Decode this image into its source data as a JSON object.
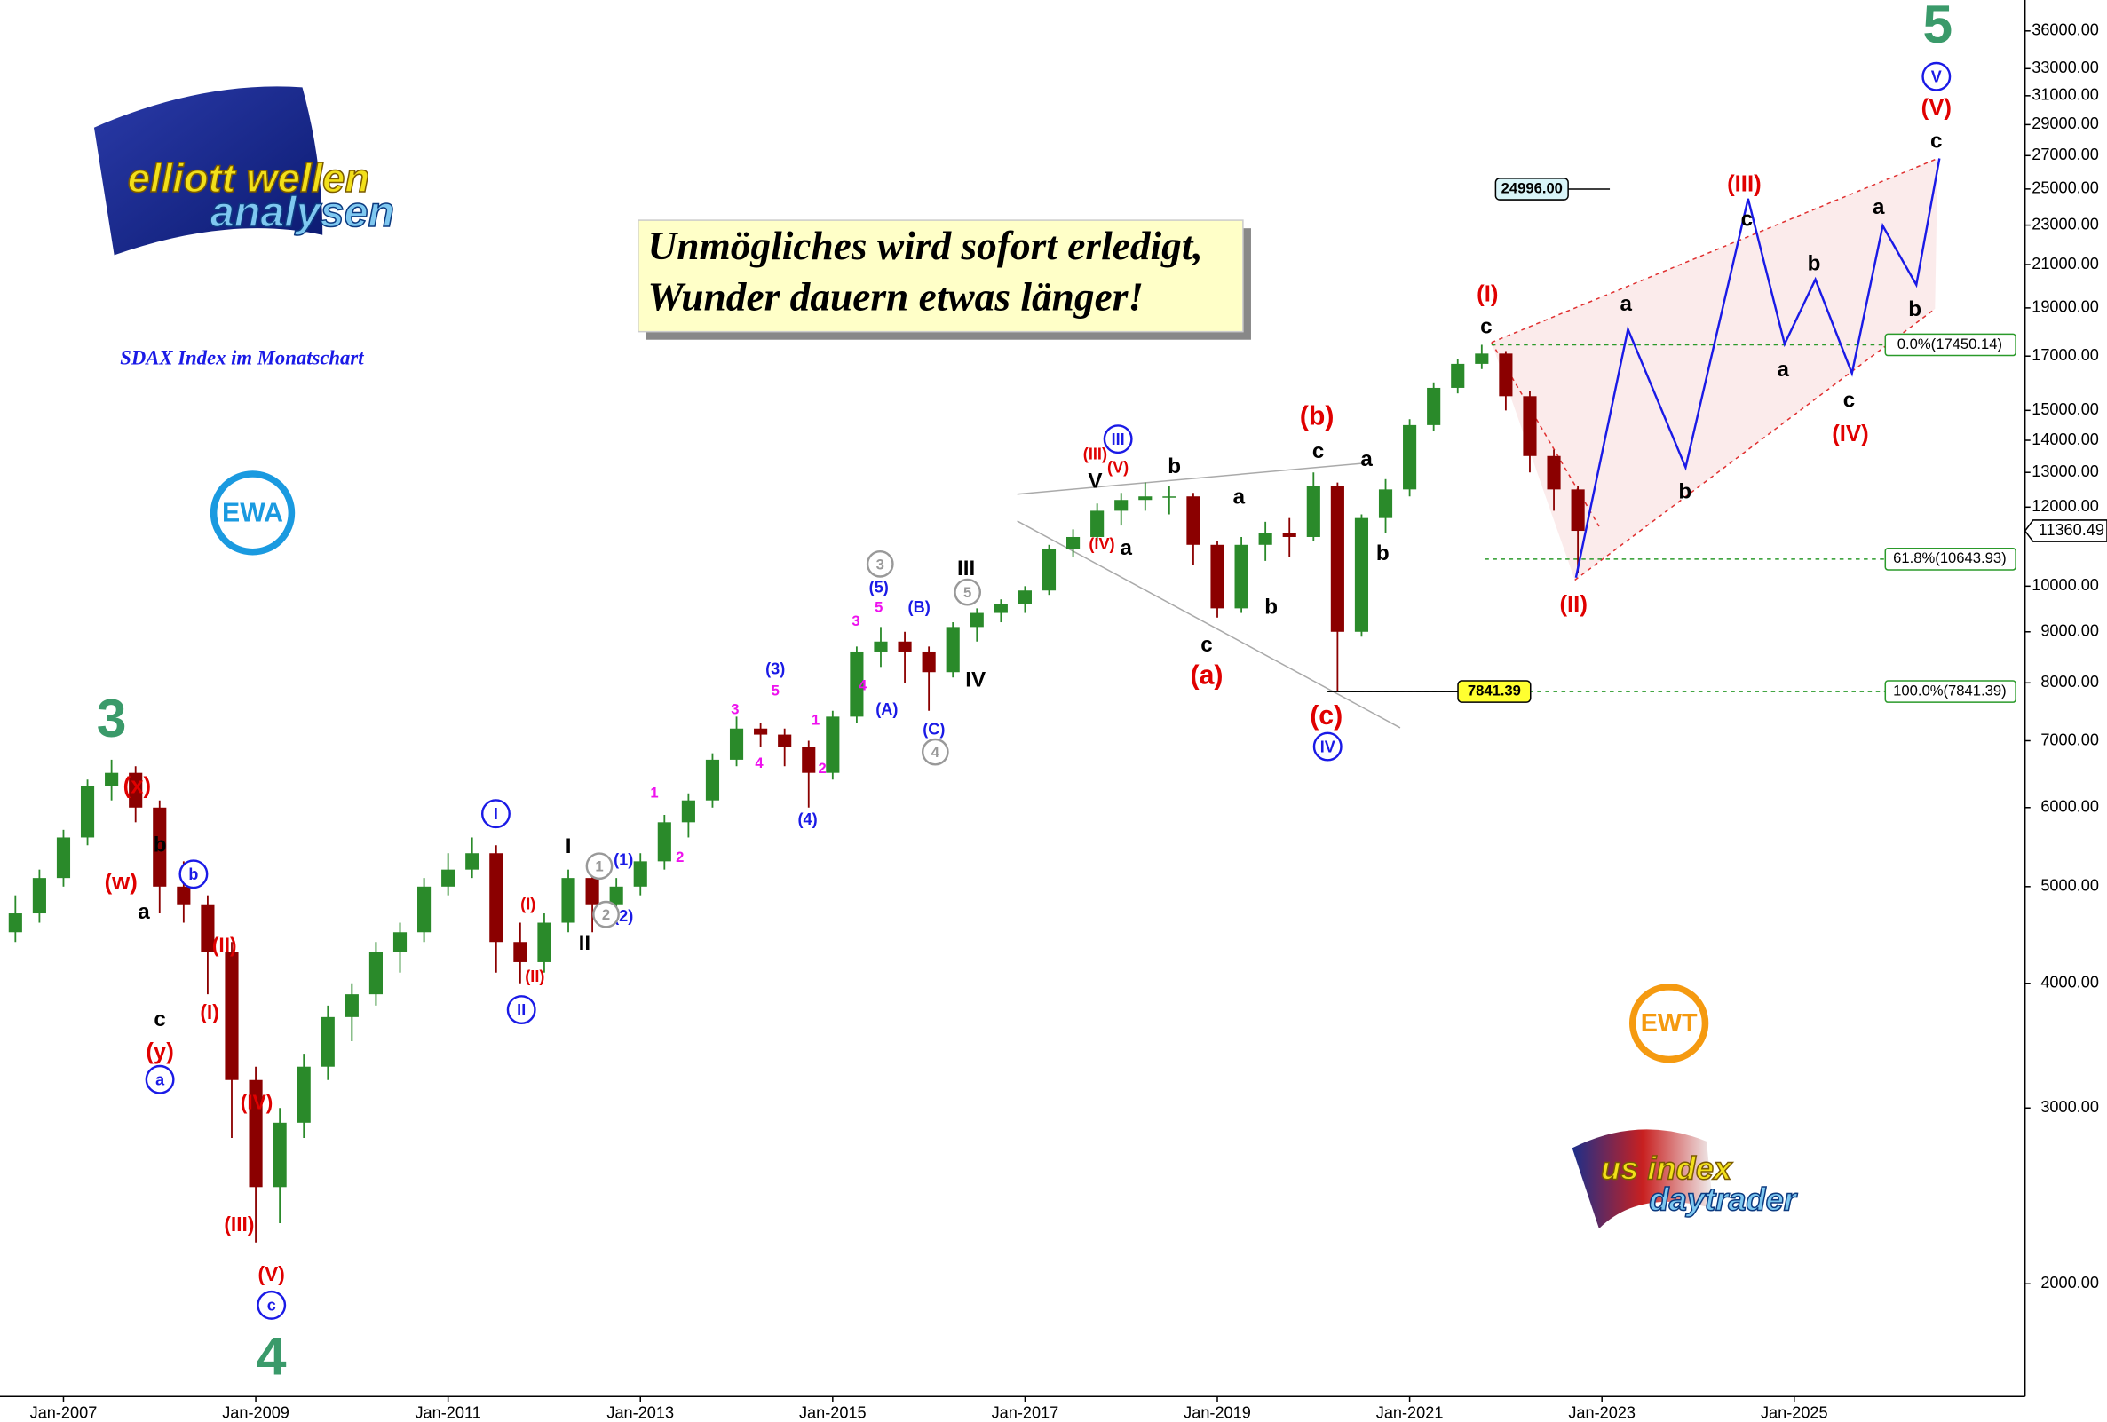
{
  "chart_data": {
    "type": "candlestick",
    "subtitle": "SDAX Index im Monatschart",
    "quote": [
      "Unmögliches wird sofort erledigt,",
      "Wunder dauern etwas länger!"
    ],
    "log_scale": true,
    "up_color": "#2a8a2a",
    "down_color": "#8b0000",
    "xlim": [
      2006.34,
      2027.4
    ],
    "xticks": [
      {
        "value": 2007,
        "label": "Jan-2007"
      },
      {
        "value": 2009,
        "label": "Jan-2009"
      },
      {
        "value": 2011,
        "label": "Jan-2011"
      },
      {
        "value": 2013,
        "label": "Jan-2013"
      },
      {
        "value": 2015,
        "label": "Jan-2015"
      },
      {
        "value": 2017,
        "label": "Jan-2017"
      },
      {
        "value": 2019,
        "label": "Jan-2019"
      },
      {
        "value": 2021,
        "label": "Jan-2021"
      },
      {
        "value": 2023,
        "label": "Jan-2023"
      },
      {
        "value": 2025,
        "label": "Jan-2025"
      }
    ],
    "ylim": [
      1542,
      38660
    ],
    "yticks": [
      {
        "value": 2000,
        "label": "2000.00"
      },
      {
        "value": 3000,
        "label": "3000.00"
      },
      {
        "value": 4000,
        "label": "4000.00"
      },
      {
        "value": 5000,
        "label": "5000.00"
      },
      {
        "value": 6000,
        "label": "6000.00"
      },
      {
        "value": 7000,
        "label": "7000.00"
      },
      {
        "value": 8000,
        "label": "8000.00"
      },
      {
        "value": 9000,
        "label": "9000.00"
      },
      {
        "value": 10000,
        "label": "10000.00"
      },
      {
        "value": 12000,
        "label": "12000.00"
      },
      {
        "value": 13000,
        "label": "13000.00"
      },
      {
        "value": 14000,
        "label": "14000.00"
      },
      {
        "value": 15000,
        "label": "15000.00"
      },
      {
        "value": 17000,
        "label": "17000.00"
      },
      {
        "value": 19000,
        "label": "19000.00"
      },
      {
        "value": 21000,
        "label": "21000.00"
      },
      {
        "value": 23000,
        "label": "23000.00"
      },
      {
        "value": 25000,
        "label": "25000.00"
      },
      {
        "value": 27000,
        "label": "27000.00"
      },
      {
        "value": 29000,
        "label": "29000.00"
      },
      {
        "value": 31000,
        "label": "31000.00"
      },
      {
        "value": 33000,
        "label": "33000.00"
      },
      {
        "value": 36000,
        "label": "36000.00"
      }
    ],
    "x": [
      2006.5,
      2006.75,
      2007,
      2007.25,
      2007.5,
      2007.75,
      2008,
      2008.25,
      2008.5,
      2008.75,
      2009,
      2009.25,
      2009.5,
      2009.75,
      2010,
      2010.25,
      2010.5,
      2010.75,
      2011,
      2011.25,
      2011.5,
      2011.75,
      2012,
      2012.25,
      2012.5,
      2012.75,
      2013,
      2013.25,
      2013.5,
      2013.75,
      2014,
      2014.25,
      2014.5,
      2014.75,
      2015,
      2015.25,
      2015.5,
      2015.75,
      2016,
      2016.25,
      2016.5,
      2016.75,
      2017,
      2017.25,
      2017.5,
      2017.75,
      2018,
      2018.25,
      2018.5,
      2018.75,
      2019,
      2019.25,
      2019.5,
      2019.75,
      2020,
      2020.25,
      2020.5,
      2020.75,
      2021,
      2021.25,
      2021.5,
      2021.75,
      2022,
      2022.25,
      2022.5,
      2022.75
    ],
    "open": [
      4500,
      4700,
      5100,
      5600,
      6300,
      6500,
      6000,
      5000,
      4800,
      4300,
      3200,
      2500,
      2900,
      3300,
      3700,
      3900,
      4300,
      4500,
      5000,
      5200,
      5400,
      4400,
      4200,
      4600,
      5100,
      4800,
      5000,
      5300,
      5800,
      6100,
      6700,
      7200,
      7100,
      6900,
      6500,
      7400,
      8600,
      8800,
      8600,
      8200,
      9100,
      9400,
      9600,
      9900,
      10900,
      11200,
      11900,
      12200,
      12300,
      12300,
      11000,
      9500,
      11000,
      11300,
      11200,
      12600,
      9000,
      11700,
      12500,
      14500,
      15800,
      16700,
      17100,
      15500,
      13500,
      12500
    ],
    "high": [
      4900,
      5200,
      5700,
      6400,
      6700,
      6600,
      6100,
      5300,
      4900,
      4400,
      3300,
      3000,
      3400,
      3800,
      4000,
      4400,
      4600,
      5100,
      5400,
      5600,
      5500,
      4600,
      4700,
      5200,
      5200,
      5100,
      5400,
      5900,
      6200,
      6800,
      7400,
      7300,
      7200,
      7000,
      7500,
      8700,
      9100,
      9000,
      8700,
      9200,
      9500,
      9700,
      10000,
      11000,
      11400,
      12100,
      12400,
      12700,
      12600,
      12400,
      11100,
      11200,
      11600,
      11700,
      13000,
      12700,
      11800,
      12800,
      14700,
      16000,
      16900,
      17450.14,
      17200,
      15700,
      13700,
      12600
    ],
    "low": [
      4400,
      4600,
      5000,
      5500,
      6100,
      5800,
      4700,
      4600,
      3900,
      2800,
      2200,
      2300,
      2800,
      3200,
      3500,
      3800,
      4100,
      4400,
      4900,
      5100,
      4100,
      4000,
      4100,
      4500,
      4500,
      4700,
      4900,
      5200,
      5600,
      6000,
      6600,
      6900,
      6600,
      6000,
      6400,
      7300,
      8300,
      8000,
      7500,
      8100,
      8800,
      9200,
      9400,
      9800,
      10700,
      11100,
      11500,
      11900,
      11800,
      10500,
      9300,
      9400,
      10600,
      10700,
      11100,
      7841.39,
      8900,
      11300,
      12300,
      14300,
      15600,
      16500,
      15000,
      13000,
      11900,
      10300
    ],
    "close": [
      4700,
      5100,
      5600,
      6300,
      6500,
      6000,
      5000,
      4800,
      4300,
      3200,
      2500,
      2900,
      3300,
      3700,
      3900,
      4300,
      4500,
      5000,
      5200,
      5400,
      4400,
      4200,
      4600,
      5100,
      4800,
      5000,
      5300,
      5800,
      6100,
      6700,
      7200,
      7100,
      6900,
      6500,
      7400,
      8600,
      8800,
      8600,
      8200,
      9100,
      9400,
      9600,
      9900,
      10900,
      11200,
      11900,
      12200,
      12300,
      12300,
      11000,
      9500,
      11000,
      11300,
      11200,
      12600,
      9000,
      11700,
      12500,
      14500,
      15800,
      16700,
      17100,
      15500,
      13500,
      12500,
      11360.49
    ],
    "projection": {
      "color": "#1a1ae6",
      "x": [
        2022.73,
        2023.27,
        2023.87,
        2024.52,
        2024.9,
        2025.22,
        2025.6,
        2025.92,
        2026.27,
        2026.51
      ],
      "values": [
        10198,
        18090,
        13150,
        24440,
        17480,
        20290,
        16340,
        22970,
        20040,
        26820
      ]
    },
    "fib_levels": [
      {
        "value": 17450.14,
        "label": "0.0%(17450.14)"
      },
      {
        "value": 10643.93,
        "label": "61.8%(10643.93)"
      },
      {
        "value": 7841.39,
        "label": "100.0%(7841.39)"
      }
    ],
    "price_tags": [
      {
        "value": 24996,
        "label": "24996.00"
      },
      {
        "value": 7841.39,
        "label": "7841.39"
      }
    ],
    "last_price": {
      "value": 11360.49,
      "label": "11360.49"
    },
    "wave_label_groups": [
      {
        "color": "#3a9a6a",
        "style": "plain",
        "labels": [
          "3",
          "4",
          "5"
        ]
      },
      {
        "color": "#e00000",
        "style": "plain",
        "labels": [
          "(x)",
          "(w)",
          "(y)",
          "(II)",
          "(I)",
          "(IV)",
          "(III)",
          "(V)",
          "(I)",
          "(II)",
          "(III)",
          "(V)",
          "(IV)",
          "(b)",
          "(a)",
          "(c)",
          "(I)",
          "(II)",
          "(III)",
          "(IV)",
          "(V)"
        ]
      },
      {
        "color": "#000000",
        "style": "plain",
        "labels": [
          "b",
          "a",
          "c",
          "I",
          "II",
          "III",
          "IV",
          "V",
          "b",
          "a",
          "a",
          "b",
          "c",
          "c",
          "a",
          "b",
          "c",
          "a",
          "b",
          "c",
          "a",
          "b",
          "c",
          "a",
          "b",
          "c"
        ]
      },
      {
        "color": "#1a1ae6",
        "style": "circle",
        "labels": [
          "b",
          "a",
          "c",
          "I",
          "II",
          "III",
          "IV",
          "V"
        ]
      },
      {
        "color": "#1a1ae6",
        "style": "plain",
        "labels": [
          "(1)",
          "(2)",
          "(3)",
          "(4)",
          "(5)",
          "(A)",
          "(B)",
          "(C)"
        ]
      },
      {
        "color": "#ee11ee",
        "style": "plain",
        "labels": [
          "1",
          "2",
          "3",
          "4",
          "5",
          "1",
          "2",
          "3",
          "4",
          "5"
        ]
      },
      {
        "color": "#999999",
        "style": "circle",
        "labels": [
          "1",
          "2",
          "3",
          "5",
          "4"
        ]
      }
    ]
  },
  "logos": {
    "elliott": [
      "elliott wellen",
      "analysen"
    ],
    "ewa": "EWA",
    "ewt": "EWT",
    "daytrader": [
      "us index",
      "daytrader"
    ]
  }
}
